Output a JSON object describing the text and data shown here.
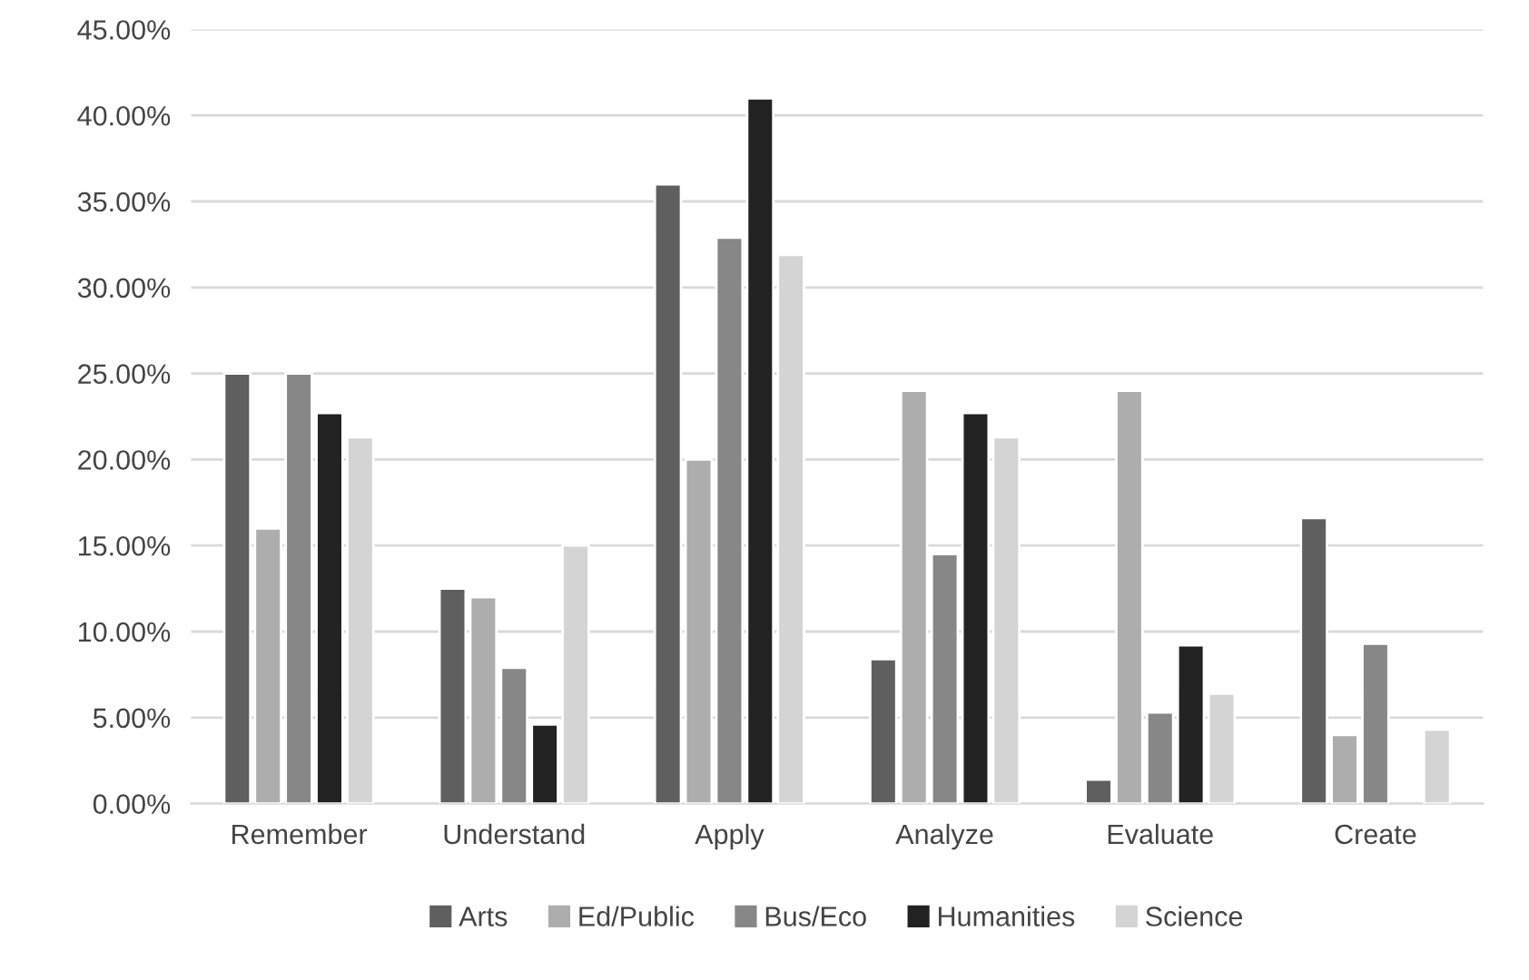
{
  "chart_data": {
    "type": "bar",
    "categories": [
      "Remember",
      "Understand",
      "Apply",
      "Analyze",
      "Evaluate",
      "Create"
    ],
    "series": [
      {
        "name": "Arts",
        "color": "#5f5f5f",
        "values": [
          25,
          12.5,
          36,
          8.4,
          1.4,
          16.6
        ]
      },
      {
        "name": "Ed/Public",
        "color": "#adadad",
        "values": [
          16,
          12,
          20,
          24,
          24,
          4.0
        ]
      },
      {
        "name": "Bus/Eco",
        "color": "#878787",
        "values": [
          25,
          7.9,
          32.9,
          14.5,
          5.3,
          9.3
        ]
      },
      {
        "name": "Humanities",
        "color": "#222222",
        "values": [
          22.7,
          4.6,
          41,
          22.7,
          9.2,
          null
        ]
      },
      {
        "name": "Science",
        "color": "#d4d4d4",
        "values": [
          21.3,
          15,
          31.9,
          21.3,
          6.4,
          4.3
        ]
      }
    ],
    "ylim": [
      0,
      45
    ],
    "yticks": [
      {
        "value": 0,
        "label": "0.00%"
      },
      {
        "value": 5,
        "label": "5.00%"
      },
      {
        "value": 10,
        "label": "10.00%"
      },
      {
        "value": 15,
        "label": "15.00%"
      },
      {
        "value": 20,
        "label": "20.00%"
      },
      {
        "value": 25,
        "label": "25.00%"
      },
      {
        "value": 30,
        "label": "30.00%"
      },
      {
        "value": 35,
        "label": "35.00%"
      },
      {
        "value": 40,
        "label": "40.00%"
      },
      {
        "value": 45,
        "label": "45.00%"
      }
    ],
    "grid": "y",
    "legend": "bottom"
  }
}
